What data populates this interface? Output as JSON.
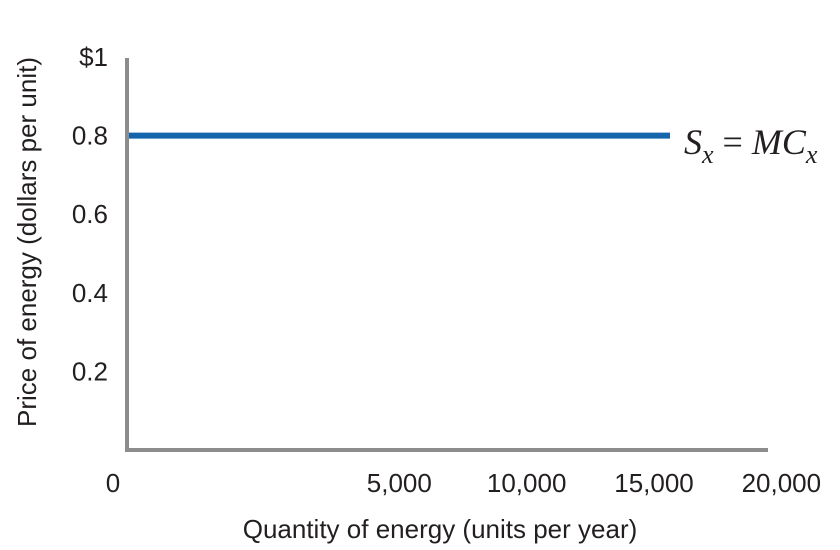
{
  "chart_data": {
    "type": "line",
    "title": "",
    "xlabel": "Quantity of energy (units per year)",
    "ylabel": "Price of energy (dollars per unit)",
    "xlim": [
      0,
      21000
    ],
    "ylim": [
      0,
      1
    ],
    "x_ticks": [
      {
        "value": 0,
        "label": "0"
      },
      {
        "value": 5000,
        "label": "5,000"
      },
      {
        "value": 10000,
        "label": "10,000"
      },
      {
        "value": 15000,
        "label": "15,000"
      },
      {
        "value": 20000,
        "label": "20,000"
      }
    ],
    "y_ticks": [
      {
        "value": 0.2,
        "label": "0.2"
      },
      {
        "value": 0.4,
        "label": "0.4"
      },
      {
        "value": 0.6,
        "label": "0.6"
      },
      {
        "value": 0.8,
        "label": "0.8"
      },
      {
        "value": 1,
        "label": "$1"
      }
    ],
    "series": [
      {
        "label_parts": {
          "s": "S",
          "s_sub": "x",
          "eq": " = ",
          "mc": "MC",
          "mc_sub": "x"
        },
        "color": "#1565ad",
        "x": [
          0,
          18500
        ],
        "y": [
          0.8,
          0.8
        ]
      }
    ],
    "grid": false,
    "legend": "none"
  }
}
